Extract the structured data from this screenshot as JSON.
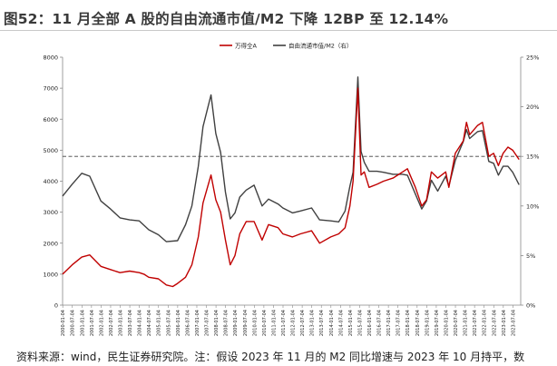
{
  "title": "图52：11 月全部 A 股的自由流通市值/M2 下降 12BP 至 12.14%",
  "source": "资料来源：wind，民生证券研究院。注：假设 2023 年 11 月的 M2 同比增速与 2023 年 10 月持平，数",
  "colors": {
    "series1": "#c00000",
    "series2": "#404040",
    "reference": "#404040"
  },
  "chart_data": {
    "type": "line",
    "series": [
      {
        "name": "万得全A",
        "axis": "left",
        "x": [
          "2000-01",
          "2000-07",
          "2001-01",
          "2001-06",
          "2002-01",
          "2002-07",
          "2003-01",
          "2003-07",
          "2004-01",
          "2004-04",
          "2004-07",
          "2005-01",
          "2005-06",
          "2005-10",
          "2006-01",
          "2006-06",
          "2006-10",
          "2007-02",
          "2007-05",
          "2007-10",
          "2008-01",
          "2008-04",
          "2008-07",
          "2008-10",
          "2009-01",
          "2009-04",
          "2009-08",
          "2010-01",
          "2010-06",
          "2010-10",
          "2011-04",
          "2011-07",
          "2012-01",
          "2012-06",
          "2013-01",
          "2013-06",
          "2014-01",
          "2014-06",
          "2014-10",
          "2015-01",
          "2015-03",
          "2015-06",
          "2015-08",
          "2015-10",
          "2016-01",
          "2016-06",
          "2016-10",
          "2017-04",
          "2017-10",
          "2018-01",
          "2018-06",
          "2018-10",
          "2019-01",
          "2019-04",
          "2019-08",
          "2020-01",
          "2020-03",
          "2020-07",
          "2020-12",
          "2021-02",
          "2021-04",
          "2021-09",
          "2021-12",
          "2022-04",
          "2022-07",
          "2022-10",
          "2023-01",
          "2023-04",
          "2023-07",
          "2023-11"
        ],
        "values": [
          1000,
          1300,
          1550,
          1620,
          1250,
          1150,
          1050,
          1100,
          1050,
          1000,
          900,
          850,
          650,
          600,
          700,
          900,
          1300,
          2200,
          3300,
          4200,
          3400,
          3000,
          2100,
          1300,
          1600,
          2300,
          2700,
          2700,
          2100,
          2600,
          2500,
          2300,
          2200,
          2300,
          2400,
          2000,
          2200,
          2300,
          2500,
          3200,
          4000,
          7000,
          4200,
          4300,
          3800,
          3900,
          4000,
          4100,
          4300,
          4400,
          3800,
          3200,
          3400,
          4300,
          4100,
          4300,
          3800,
          4900,
          5300,
          5900,
          5500,
          5800,
          5900,
          4800,
          4900,
          4500,
          4900,
          5100,
          5000,
          4700
        ]
      },
      {
        "name": "自由流通市值/M2（右）",
        "axis": "right",
        "x": [
          "2000-01",
          "2000-07",
          "2001-01",
          "2001-06",
          "2002-01",
          "2002-07",
          "2003-01",
          "2003-07",
          "2004-01",
          "2004-07",
          "2005-01",
          "2005-06",
          "2006-01",
          "2006-06",
          "2006-10",
          "2007-02",
          "2007-05",
          "2007-10",
          "2008-01",
          "2008-04",
          "2008-07",
          "2008-10",
          "2009-01",
          "2009-04",
          "2009-08",
          "2010-01",
          "2010-06",
          "2010-10",
          "2011-04",
          "2011-07",
          "2012-01",
          "2012-06",
          "2013-01",
          "2013-06",
          "2014-01",
          "2014-06",
          "2014-10",
          "2015-01",
          "2015-03",
          "2015-06",
          "2015-08",
          "2015-10",
          "2016-01",
          "2016-06",
          "2016-10",
          "2017-04",
          "2017-10",
          "2018-01",
          "2018-06",
          "2018-10",
          "2019-01",
          "2019-04",
          "2019-08",
          "2020-01",
          "2020-03",
          "2020-07",
          "2020-12",
          "2021-02",
          "2021-04",
          "2021-09",
          "2021-12",
          "2022-04",
          "2022-07",
          "2022-10",
          "2023-01",
          "2023-04",
          "2023-07",
          "2023-11"
        ],
        "values": [
          11,
          12.2,
          13.3,
          13,
          10.5,
          9.7,
          8.8,
          8.6,
          8.5,
          7.6,
          7.1,
          6.4,
          6.5,
          8.1,
          10,
          14,
          18,
          21.2,
          17.3,
          15.4,
          11.4,
          8.7,
          9.3,
          10.9,
          11.6,
          12.1,
          10,
          10.7,
          10.2,
          9.8,
          9.3,
          9.5,
          9.8,
          8.6,
          8.5,
          8.4,
          9.5,
          12,
          13.4,
          23,
          15.5,
          14.4,
          13.5,
          13.5,
          13.4,
          13.2,
          13.2,
          13.1,
          11.2,
          9.7,
          10.5,
          12.6,
          11.5,
          13,
          12,
          14.6,
          16.5,
          17.7,
          16.8,
          17.5,
          17.6,
          14.5,
          14.3,
          13.1,
          14,
          14,
          13.4,
          12.14
        ]
      }
    ],
    "reference_line": {
      "value": 4800,
      "axis": "left",
      "style": "dashed"
    },
    "ylim_left": [
      0,
      8000
    ],
    "yticks_left": [
      "0",
      "1000",
      "2000",
      "3000",
      "4000",
      "5000",
      "6000",
      "7000",
      "8000"
    ],
    "ylim_right": [
      0,
      25
    ],
    "yticks_right": [
      "0%",
      "5%",
      "10%",
      "15%",
      "20%",
      "25%"
    ],
    "xlim": [
      "2000-01",
      "2023-12"
    ],
    "xticks": [
      "2000-01-04",
      "2000-07-04",
      "2001-01-04",
      "2001-07-04",
      "2002-01-04",
      "2002-07-04",
      "2003-01-04",
      "2003-07-04",
      "2004-01-04",
      "2004-07-04",
      "2005-01-04",
      "2005-07-04",
      "2006-01-04",
      "2006-07-04",
      "2007-01-04",
      "2007-07-04",
      "2008-01-04",
      "2008-07-04",
      "2009-01-04",
      "2009-07-04",
      "2010-01-04",
      "2010-07-04",
      "2011-01-04",
      "2011-07-04",
      "2012-01-04",
      "2012-07-04",
      "2013-01-04",
      "2013-07-04",
      "2014-01-04",
      "2014-07-04",
      "2015-01-04",
      "2015-07-04",
      "2016-01-04",
      "2016-07-04",
      "2017-01-04",
      "2017-07-04",
      "2018-01-04",
      "2018-07-04",
      "2019-01-04",
      "2019-07-04",
      "2020-01-04",
      "2020-07-04",
      "2021-01-04",
      "2021-07-04",
      "2022-01-04",
      "2022-07-04",
      "2023-01-04",
      "2023-07-04"
    ],
    "grid": false,
    "legend": "top-center"
  }
}
